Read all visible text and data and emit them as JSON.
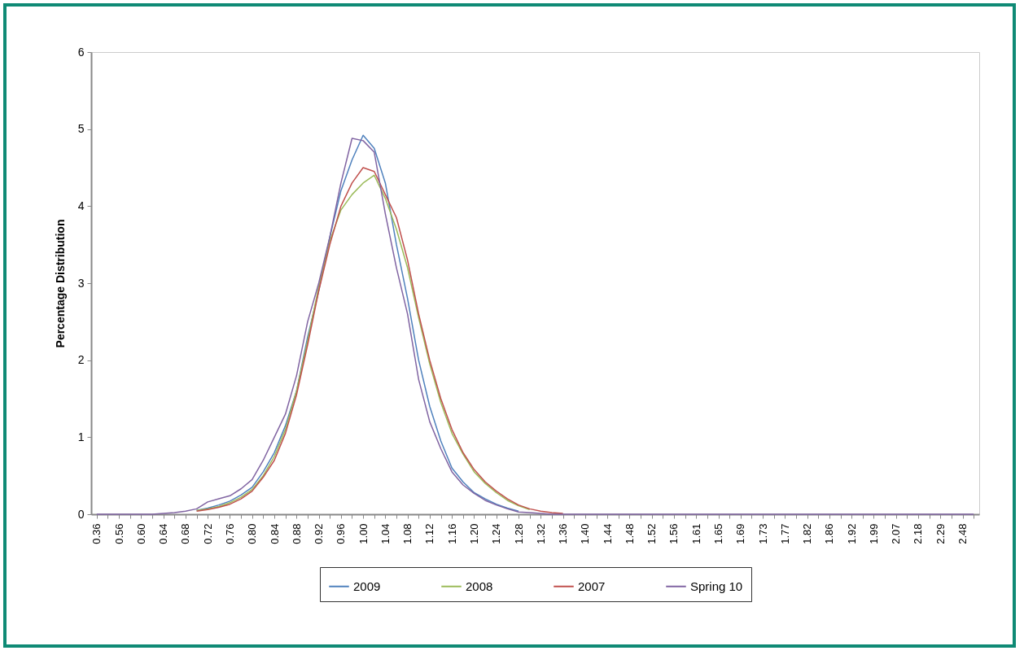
{
  "chart_data": {
    "type": "line",
    "ylabel": "Percentage Distribution",
    "legend": "bottom",
    "categories": [
      "0.36",
      null,
      "0.56",
      null,
      "0.60",
      null,
      "0.64",
      null,
      "0.68",
      null,
      "0.72",
      null,
      "0.76",
      null,
      "0.80",
      null,
      "0.84",
      null,
      "0.88",
      null,
      "0.92",
      null,
      "0.96",
      null,
      "1.00",
      null,
      "1.04",
      null,
      "1.08",
      null,
      "1.12",
      null,
      "1.16",
      null,
      "1.20",
      null,
      "1.24",
      null,
      "1.28",
      null,
      "1.32",
      null,
      "1.36",
      null,
      "1.40",
      null,
      "1.44",
      null,
      "1.48",
      null,
      "1.52",
      null,
      "1.56",
      null,
      "1.61",
      null,
      "1.65",
      null,
      "1.69",
      null,
      "1.73",
      null,
      "1.77",
      null,
      "1.82",
      null,
      "1.86",
      null,
      "1.92",
      null,
      "1.99",
      null,
      "2.07",
      null,
      "2.18",
      null,
      "2.29",
      null,
      "2.48",
      null
    ],
    "ylim": [
      0,
      6
    ],
    "yticks": [
      0,
      1,
      2,
      3,
      4,
      5,
      6
    ],
    "series": [
      {
        "name": "2009",
        "color": "#4f81bd",
        "values": [
          null,
          null,
          null,
          null,
          null,
          null,
          null,
          null,
          null,
          0.05,
          0.08,
          0.12,
          0.17,
          0.25,
          0.35,
          0.55,
          0.8,
          1.15,
          1.6,
          2.3,
          2.9,
          3.6,
          4.2,
          4.6,
          4.92,
          4.75,
          4.3,
          3.5,
          2.8,
          2.0,
          1.4,
          0.95,
          0.6,
          0.42,
          0.28,
          0.2,
          0.13,
          0.08,
          0.04,
          null,
          null,
          null,
          null,
          null,
          null,
          null,
          null,
          null,
          null,
          null,
          null,
          null,
          null,
          null,
          null,
          null,
          null,
          null,
          null,
          null,
          null,
          null,
          null,
          null,
          null,
          null,
          null,
          null,
          null,
          null,
          null,
          null,
          null,
          null,
          null,
          null,
          null,
          null,
          null,
          null
        ]
      },
      {
        "name": "2008",
        "color": "#9bbb59",
        "values": [
          null,
          null,
          null,
          null,
          null,
          null,
          null,
          null,
          null,
          0.05,
          0.07,
          0.1,
          0.15,
          0.22,
          0.32,
          0.5,
          0.75,
          1.1,
          1.6,
          2.25,
          2.95,
          3.55,
          3.95,
          4.15,
          4.3,
          4.4,
          4.1,
          3.7,
          3.2,
          2.55,
          1.95,
          1.45,
          1.05,
          0.78,
          0.55,
          0.4,
          0.28,
          0.18,
          0.11,
          0.06,
          null,
          null,
          null,
          null,
          null,
          null,
          null,
          null,
          null,
          null,
          null,
          null,
          null,
          null,
          null,
          null,
          null,
          null,
          null,
          null,
          null,
          null,
          null,
          null,
          null,
          null,
          null,
          null,
          null,
          null,
          null,
          null,
          null,
          null,
          null,
          null,
          null,
          null,
          null,
          null
        ]
      },
      {
        "name": "2007",
        "color": "#c0504d",
        "values": [
          null,
          null,
          null,
          null,
          null,
          null,
          null,
          null,
          null,
          0.04,
          0.06,
          0.09,
          0.13,
          0.2,
          0.3,
          0.48,
          0.7,
          1.05,
          1.55,
          2.2,
          2.9,
          3.5,
          4.0,
          4.3,
          4.5,
          4.45,
          4.15,
          3.85,
          3.3,
          2.6,
          2.0,
          1.5,
          1.1,
          0.8,
          0.58,
          0.42,
          0.3,
          0.2,
          0.12,
          0.07,
          0.04,
          0.02,
          0.01,
          null,
          null,
          null,
          null,
          null,
          null,
          null,
          null,
          null,
          null,
          null,
          null,
          null,
          null,
          null,
          null,
          null,
          null,
          null,
          null,
          null,
          null,
          null,
          null,
          null,
          null,
          null,
          null,
          null,
          null,
          null,
          null,
          null,
          null,
          null,
          null,
          null
        ]
      },
      {
        "name": "Spring 10",
        "color": "#8064a2",
        "values": [
          0,
          0,
          0,
          0,
          0,
          0,
          0.01,
          0.02,
          0.04,
          0.07,
          0.16,
          0.2,
          0.24,
          0.33,
          0.45,
          0.7,
          1.0,
          1.3,
          1.8,
          2.5,
          3.0,
          3.6,
          4.3,
          4.88,
          4.85,
          4.7,
          3.9,
          3.2,
          2.6,
          1.75,
          1.2,
          0.85,
          0.55,
          0.38,
          0.27,
          0.18,
          0.12,
          0.07,
          0.03,
          0.02,
          0.01,
          0,
          0,
          0,
          0,
          0,
          0,
          0,
          0,
          0,
          0,
          0,
          0,
          0,
          0,
          0,
          0,
          0,
          0,
          0,
          0,
          0,
          0,
          0,
          0,
          0,
          0,
          0,
          0,
          0,
          0,
          0,
          0,
          0,
          0,
          0,
          0,
          0,
          0,
          0
        ]
      }
    ]
  }
}
